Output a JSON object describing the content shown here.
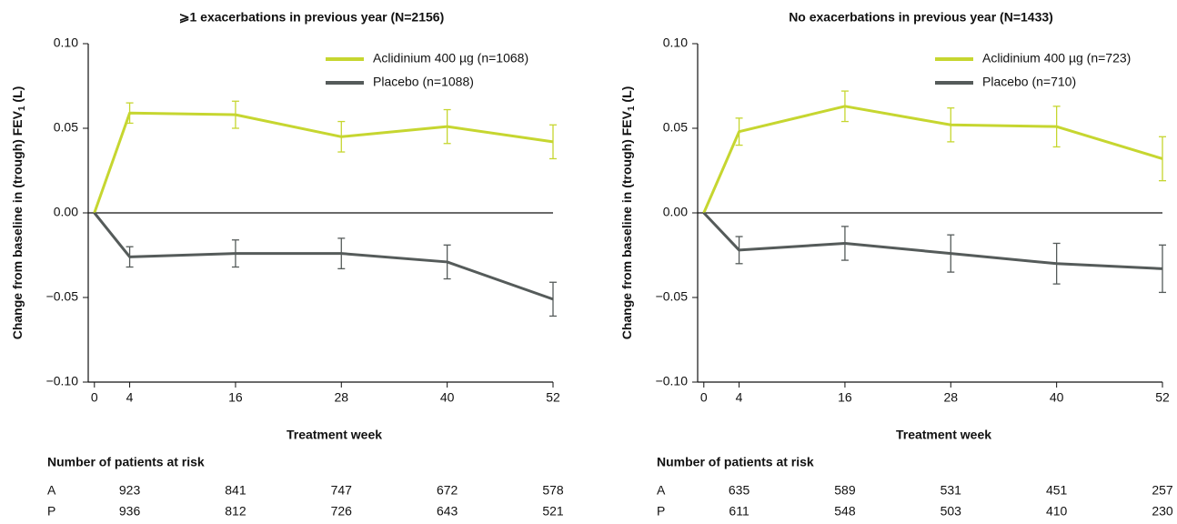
{
  "chart_data": [
    {
      "type": "line",
      "title": "⩾1 exacerbations in previous year (N=2156)",
      "ylabel": "Change from baseline in (trough) FEV",
      "ylabel_sub": "1",
      "ylabel_suffix": " (L)",
      "xlabel": "Treatment week",
      "x": [
        0,
        4,
        16,
        28,
        40,
        52
      ],
      "xlim": [
        -0.7,
        52
      ],
      "xticks": [
        0,
        4,
        16,
        28,
        40,
        52
      ],
      "ylim": [
        -0.1,
        0.1
      ],
      "yticks": [
        {
          "value": -0.1,
          "label": "−0.10"
        },
        {
          "value": -0.05,
          "label": "−0.05"
        },
        {
          "value": 0,
          "label": "0.00"
        },
        {
          "value": 0.05,
          "label": "0.05"
        },
        {
          "value": 0.1,
          "label": "0.10"
        }
      ],
      "legend": "upper right",
      "series": [
        {
          "name": "Aclidinium 400 µg (n=1068)",
          "color": "#c6d630",
          "values": [
            0,
            0.059,
            0.058,
            0.045,
            0.051,
            0.042
          ],
          "errors": [
            null,
            0.006,
            0.008,
            0.009,
            0.01,
            0.01
          ]
        },
        {
          "name": "Placebo (n=1088)",
          "color": "#555b5a",
          "values": [
            0,
            -0.026,
            -0.024,
            -0.024,
            -0.029,
            -0.051
          ],
          "errors": [
            null,
            0.006,
            0.008,
            0.009,
            0.01,
            0.01
          ]
        }
      ],
      "risk_table": {
        "title": "Number of patients at risk",
        "rows": [
          {
            "label": "A",
            "values": [
              923,
              841,
              747,
              672,
              578
            ]
          },
          {
            "label": "P",
            "values": [
              936,
              812,
              726,
              643,
              521
            ]
          }
        ]
      }
    },
    {
      "type": "line",
      "title": "No exacerbations in previous year (N=1433)",
      "ylabel": "Change from baseline in (trough) FEV",
      "ylabel_sub": "1",
      "ylabel_suffix": " (L)",
      "xlabel": "Treatment week",
      "x": [
        0,
        4,
        16,
        28,
        40,
        52
      ],
      "xlim": [
        -0.7,
        52
      ],
      "xticks": [
        0,
        4,
        16,
        28,
        40,
        52
      ],
      "ylim": [
        -0.1,
        0.1
      ],
      "yticks": [
        {
          "value": -0.1,
          "label": "−0.10"
        },
        {
          "value": -0.05,
          "label": "−0.05"
        },
        {
          "value": 0,
          "label": "0.00"
        },
        {
          "value": 0.05,
          "label": "0.05"
        },
        {
          "value": 0.1,
          "label": "0.10"
        }
      ],
      "legend": "upper right",
      "series": [
        {
          "name": "Aclidinium 400 µg (n=723)",
          "color": "#c6d630",
          "values": [
            0,
            0.048,
            0.063,
            0.052,
            0.051,
            0.032
          ],
          "errors": [
            null,
            0.008,
            0.009,
            0.01,
            0.012,
            0.013
          ]
        },
        {
          "name": "Placebo (n=710)",
          "color": "#555b5a",
          "values": [
            0,
            -0.022,
            -0.018,
            -0.024,
            -0.03,
            -0.033
          ],
          "errors": [
            null,
            0.008,
            0.01,
            0.011,
            0.012,
            0.014
          ]
        }
      ],
      "risk_table": {
        "title": "Number of patients at risk",
        "rows": [
          {
            "label": "A",
            "values": [
              635,
              589,
              531,
              451,
              257
            ]
          },
          {
            "label": "P",
            "values": [
              611,
              548,
              503,
              410,
              230
            ]
          }
        ]
      }
    }
  ]
}
